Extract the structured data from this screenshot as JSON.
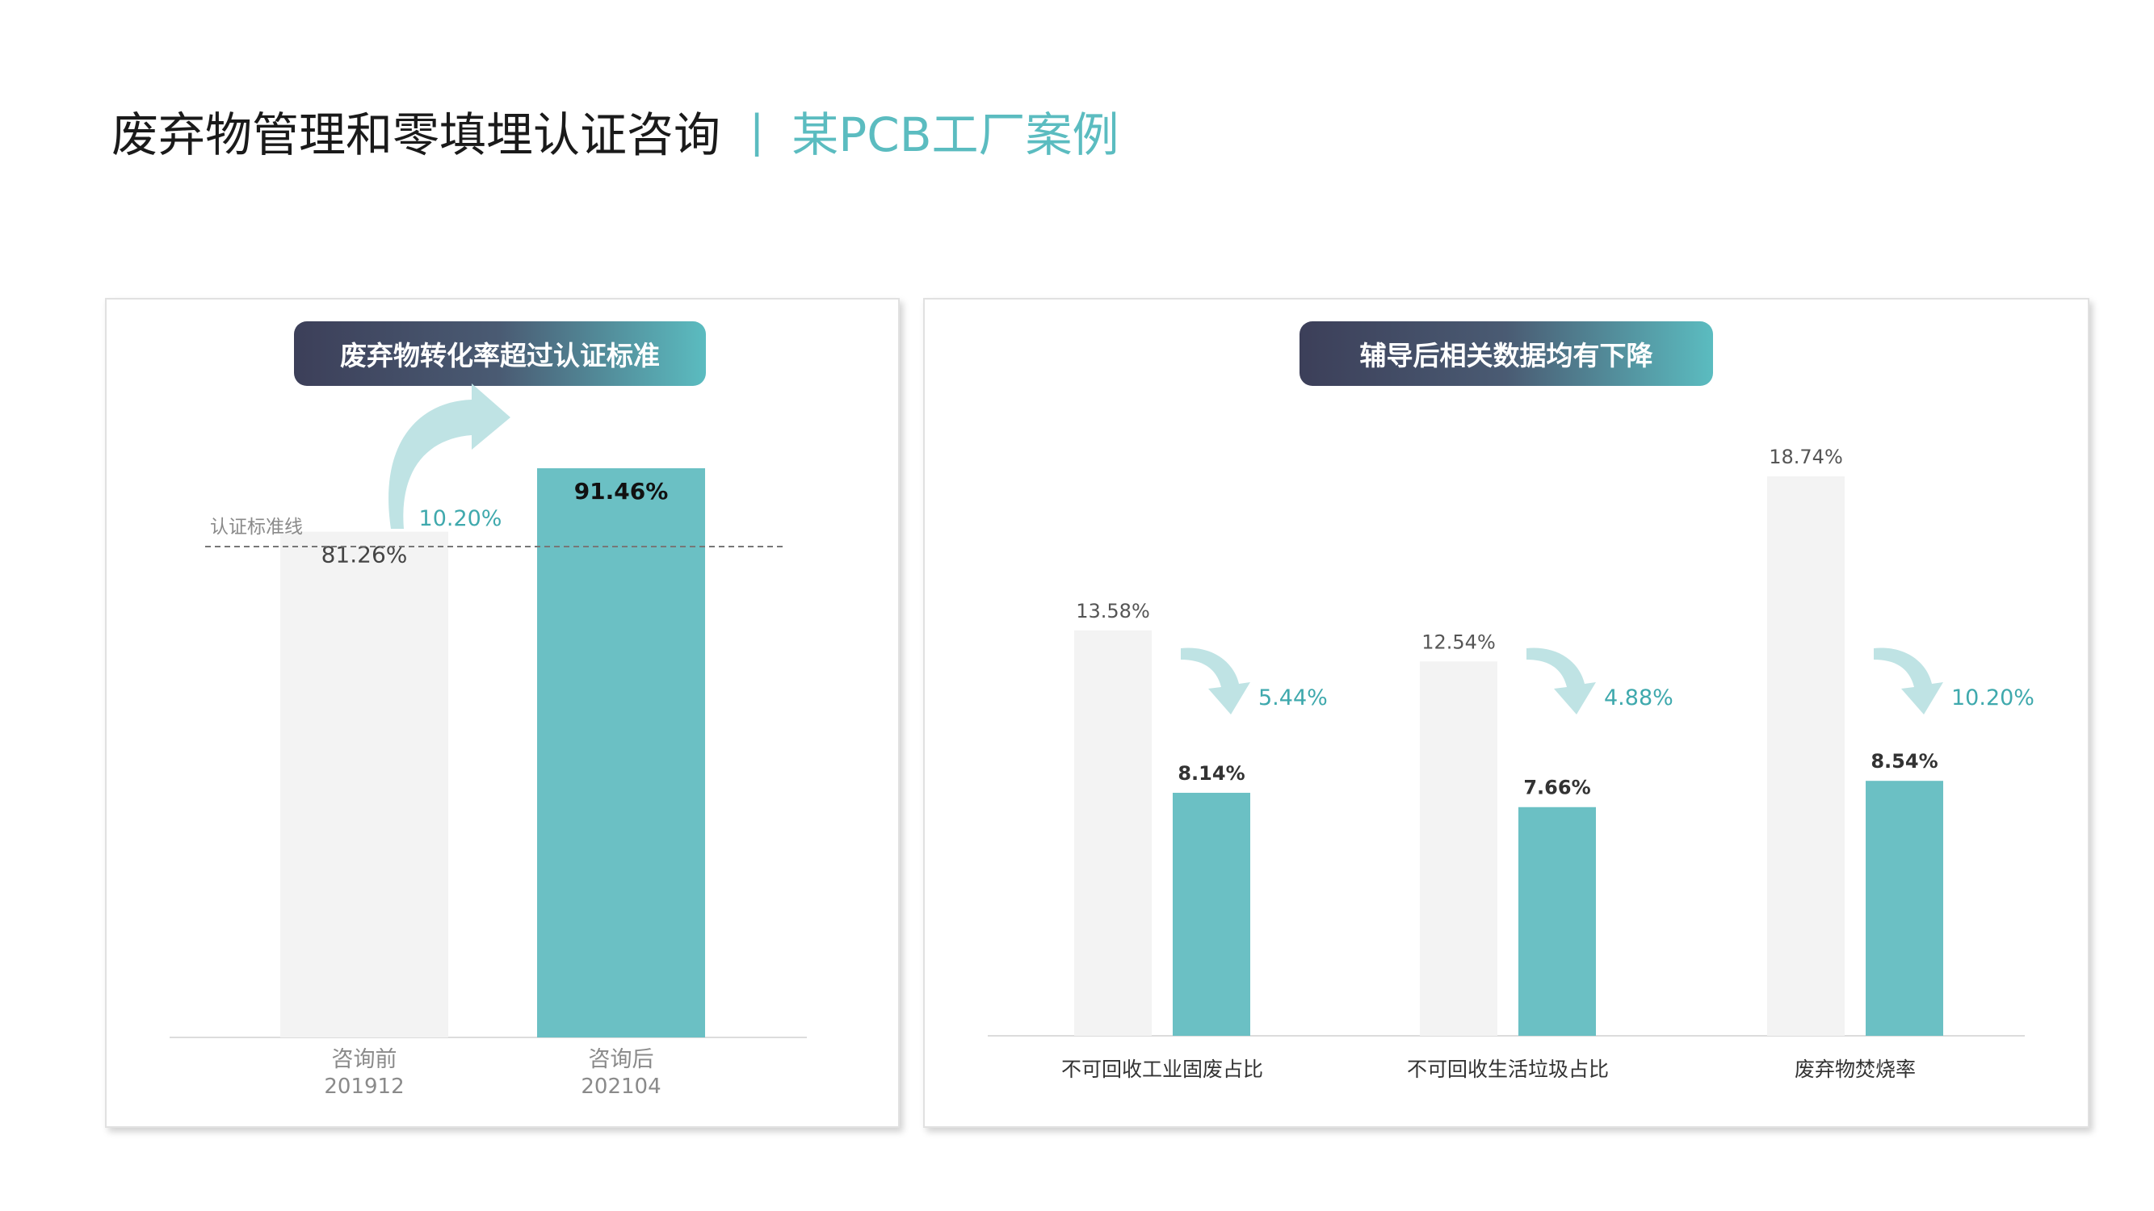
{
  "header": {
    "title": "废弃物管理和零填埋认证咨询",
    "separator": "|",
    "subtitle": "某PCB工厂案例"
  },
  "left_panel": {
    "pill_title": "废弃物转化率超过认证标准"
  },
  "right_panel": {
    "pill_title": "辅导后相关数据均有下降"
  },
  "colors": {
    "accent": "#6bc0c4",
    "before_bar": "#f3f3f3",
    "arrow": "#bfe3e4",
    "pill_start": "#3c3f59",
    "pill_end": "#5bbcc0"
  },
  "chart_data": [
    {
      "type": "bar",
      "title": "废弃物转化率超过认证标准",
      "categories": [
        {
          "label": "咨询前",
          "sub": "201912"
        },
        {
          "label": "咨询后",
          "sub": "202104"
        }
      ],
      "values": [
        81.26,
        91.46
      ],
      "value_labels": [
        "81.26%",
        "91.46%"
      ],
      "reference_line": {
        "label": "认证标准线",
        "value": 90
      },
      "change_label": "10.20%",
      "ylim": [
        0,
        100
      ],
      "grid": false
    },
    {
      "type": "bar",
      "title": "辅导后相关数据均有下降",
      "categories": [
        "不可回收工业固废占比",
        "不可回收生活垃圾占比",
        "废弃物焚烧率"
      ],
      "series": [
        {
          "values": [
            13.58,
            12.54,
            18.74
          ],
          "labels": [
            "13.58%",
            "12.54%",
            "18.74%"
          ]
        },
        {
          "values": [
            8.14,
            7.66,
            8.54
          ],
          "labels": [
            "8.14%",
            "7.66%",
            "8.54%"
          ]
        }
      ],
      "change_labels": [
        "5.44%",
        "4.88%",
        "10.20%"
      ],
      "ylim": [
        0,
        19
      ],
      "grid": false
    }
  ]
}
